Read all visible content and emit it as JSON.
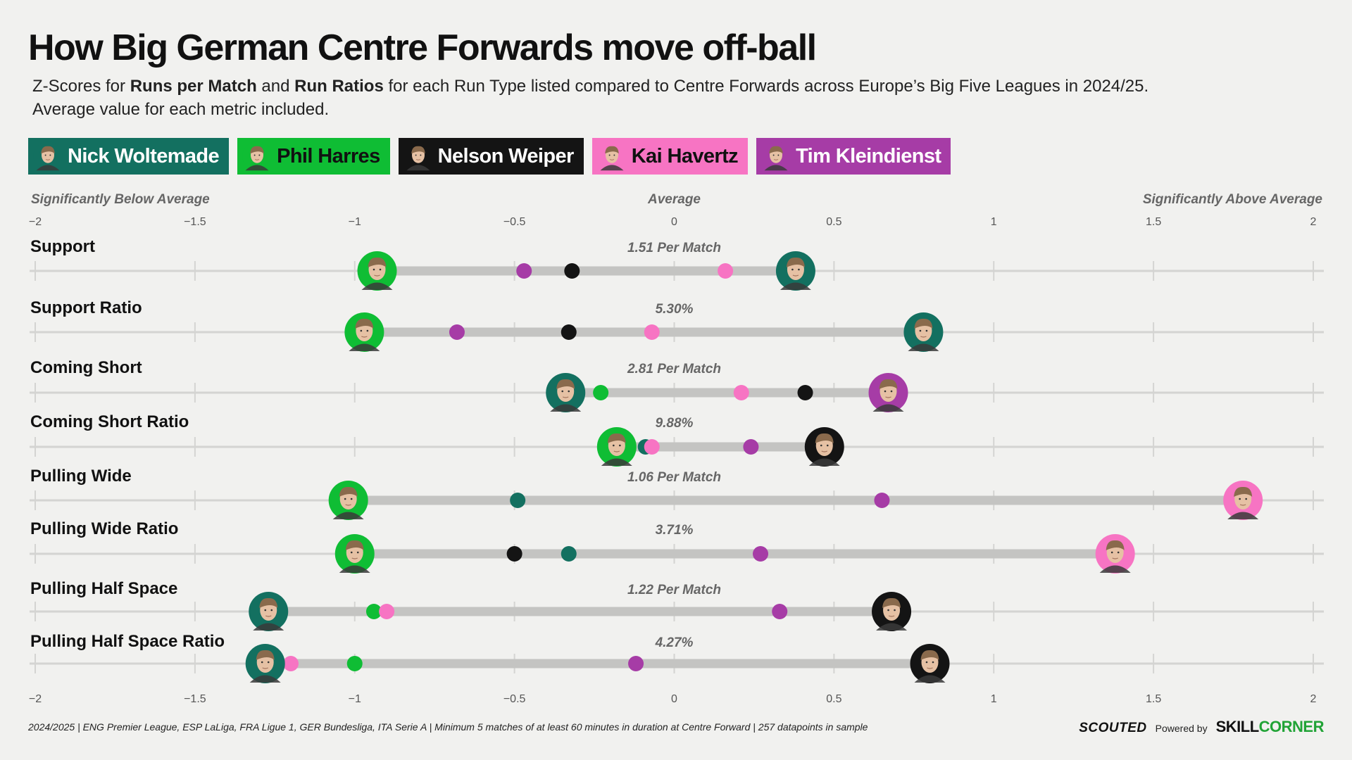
{
  "title": "How Big German Centre Forwards move off-ball",
  "subtitle": {
    "p1": "Z-Scores for ",
    "b1": "Runs per Match",
    "p2": " and ",
    "b2": "Run Ratios",
    "p3": " for each Run Type listed compared to Centre Forwards across Europe’s Big Five Leagues in 2024/25.",
    "line2": "Average value for each metric included."
  },
  "players": [
    {
      "name": "Nick Woltemade",
      "color": "#137060",
      "text": "#ffffff",
      "icon": "nick-woltemade-avatar"
    },
    {
      "name": "Phil Harres",
      "color": "#0fbd34",
      "text": "#111111",
      "icon": "phil-harres-avatar"
    },
    {
      "name": "Nelson Weiper",
      "color": "#141414",
      "text": "#ffffff",
      "icon": "nelson-weiper-avatar"
    },
    {
      "name": "Kai Havertz",
      "color": "#f774c3",
      "text": "#111111",
      "icon": "kai-havertz-avatar"
    },
    {
      "name": "Tim Kleindienst",
      "color": "#a63ca6",
      "text": "#ffffff",
      "icon": "tim-kleindienst-avatar"
    }
  ],
  "chart_data": {
    "type": "scatter",
    "xlim": [
      -2,
      2
    ],
    "x_ticks": [
      "−2",
      "−1.5",
      "−1",
      "−0.5",
      "0",
      "0.5",
      "1",
      "1.5",
      "2"
    ],
    "x_tick_values": [
      -2,
      -1.5,
      -1,
      -0.5,
      0,
      0.5,
      1,
      1.5,
      2
    ],
    "scale_labels": {
      "left": "Significantly Below Average",
      "center": "Average",
      "right": "Significantly Above Average"
    },
    "series_names": [
      "Nick Woltemade",
      "Phil Harres",
      "Nelson Weiper",
      "Kai Havertz",
      "Tim Kleindienst"
    ],
    "metrics": [
      {
        "label": "Support",
        "average": "1.51 Per Match",
        "values": [
          0.38,
          -0.93,
          -0.32,
          0.16,
          -0.47
        ]
      },
      {
        "label": "Support Ratio",
        "average": "5.30%",
        "values": [
          0.78,
          -0.97,
          -0.33,
          -0.07,
          -0.68
        ]
      },
      {
        "label": "Coming Short",
        "average": "2.81 Per Match",
        "values": [
          -0.34,
          -0.23,
          0.41,
          0.21,
          0.67
        ]
      },
      {
        "label": "Coming Short Ratio",
        "average": "9.88%",
        "values": [
          -0.09,
          -0.18,
          0.47,
          -0.07,
          0.24
        ]
      },
      {
        "label": "Pulling Wide",
        "average": "1.06 Per Match",
        "values": [
          -0.49,
          -1.02,
          -1.02,
          1.78,
          0.65
        ]
      },
      {
        "label": "Pulling Wide Ratio",
        "average": "3.71%",
        "values": [
          -0.33,
          -1.0,
          -0.5,
          1.38,
          0.27
        ]
      },
      {
        "label": "Pulling Half Space",
        "average": "1.22 Per Match",
        "values": [
          -1.27,
          -0.94,
          0.68,
          -0.9,
          0.33
        ]
      },
      {
        "label": "Pulling Half Space Ratio",
        "average": "4.27%",
        "values": [
          -1.28,
          -1.0,
          0.8,
          -1.2,
          -0.12
        ]
      }
    ]
  },
  "footer": "2024/2025 | ENG Premier League, ESP LaLiga, FRA Ligue 1, GER Bundesliga, ITA Serie A | Minimum 5 matches of at least 60 minutes in duration at Centre Forward | 257 datapoints in sample",
  "brand": {
    "scouted": "SCOUTED",
    "powered": "Powered by",
    "sc1": "SKILL",
    "sc2": "CORNER"
  }
}
